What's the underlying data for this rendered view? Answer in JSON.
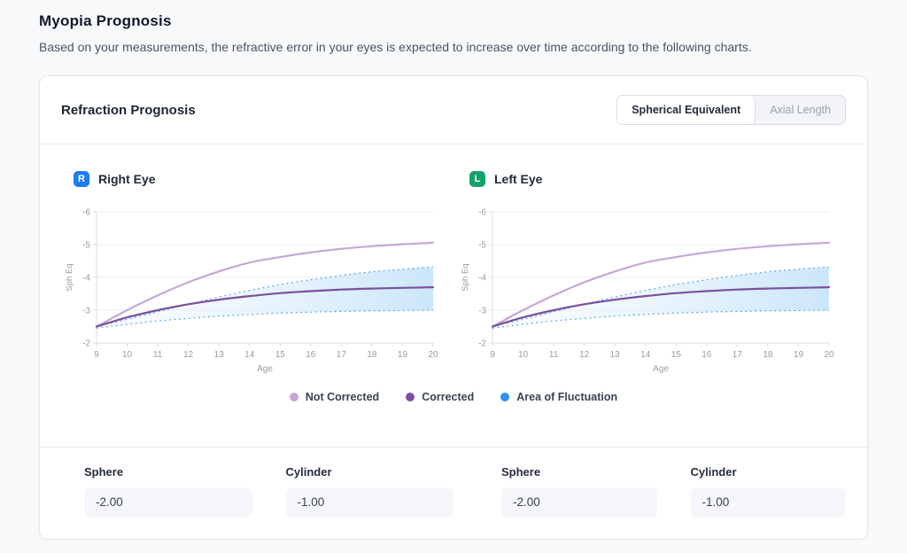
{
  "page": {
    "title": "Myopia Prognosis",
    "subtitle": "Based on your measurements, the refractive error in your eyes is expected to increase over time according to the following charts."
  },
  "card": {
    "title": "Refraction Prognosis",
    "toggle": {
      "options": [
        {
          "label": "Spherical Equivalent",
          "active": true
        },
        {
          "label": "Axial Length",
          "active": false
        }
      ]
    }
  },
  "eyes": {
    "right": {
      "badge": "R",
      "badge_color": "#1d7df2",
      "title": "Right Eye"
    },
    "left": {
      "badge": "L",
      "badge_color": "#15a36b",
      "title": "Left Eye"
    }
  },
  "legend": [
    {
      "label": "Not Corrected",
      "color": "#c7a7d6"
    },
    {
      "label": "Corrected",
      "color": "#7a509f"
    },
    {
      "label": "Area of Fluctuation",
      "color": "#2e90f0"
    }
  ],
  "chart_data": {
    "type": "line",
    "applies_to": [
      "right",
      "left"
    ],
    "xlabel": "Age",
    "ylabel": "Sph Eq",
    "x": [
      9,
      10,
      11,
      12,
      13,
      14,
      15,
      16,
      17,
      18,
      19,
      20
    ],
    "ylim": [
      -2,
      -6
    ],
    "yticks": [
      -6,
      -5,
      -4,
      -3,
      -2
    ],
    "grid": true,
    "legend_position": "bottom-center",
    "series": [
      {
        "name": "Not Corrected",
        "color": "#c7a7d6",
        "style": "solid",
        "values": [
          -2.5,
          -3.0,
          -3.45,
          -3.85,
          -4.18,
          -4.45,
          -4.62,
          -4.76,
          -4.87,
          -4.95,
          -5.01,
          -5.06
        ]
      },
      {
        "name": "Corrected",
        "color": "#7a509f",
        "style": "solid",
        "values": [
          -2.5,
          -2.78,
          -3.0,
          -3.18,
          -3.32,
          -3.43,
          -3.52,
          -3.58,
          -3.63,
          -3.66,
          -3.68,
          -3.7
        ]
      },
      {
        "name": "Fluctuation Upper",
        "color": "#58a8f2",
        "style": "dashed",
        "values": [
          -2.5,
          -2.72,
          -2.95,
          -3.18,
          -3.4,
          -3.6,
          -3.78,
          -3.93,
          -4.06,
          -4.17,
          -4.25,
          -4.32
        ]
      },
      {
        "name": "Fluctuation Lower",
        "color": "#58a8f2",
        "style": "dashed",
        "values": [
          -2.45,
          -2.57,
          -2.67,
          -2.75,
          -2.82,
          -2.87,
          -2.91,
          -2.94,
          -2.96,
          -2.98,
          -2.99,
          -3.0
        ]
      }
    ],
    "band": {
      "upper": "Fluctuation Upper",
      "lower": "Fluctuation Lower",
      "fill_from": "rgba(227,242,253,0.15)",
      "fill_to": "rgba(198,227,249,0.9)"
    },
    "axis_colors": {
      "grid": "#edeff3",
      "spine": "#d8dce2",
      "tick_text": "#959ca6"
    }
  },
  "footer": {
    "right_eye": {
      "fields": [
        {
          "label": "Sphere",
          "value": "-2.00"
        },
        {
          "label": "Cylinder",
          "value": "-1.00"
        }
      ]
    },
    "left_eye": {
      "fields": [
        {
          "label": "Sphere",
          "value": "-2.00"
        },
        {
          "label": "Cylinder",
          "value": "-1.00"
        }
      ]
    }
  }
}
